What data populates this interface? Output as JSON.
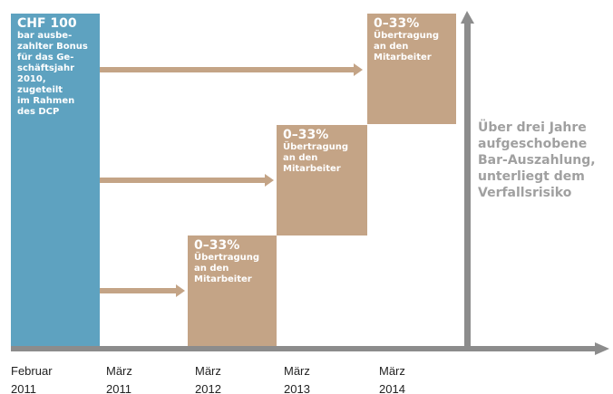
{
  "bonus": {
    "title": "CHF 100",
    "lines": [
      "bar ausbe-",
      "zahlter Bonus",
      "für das Ge-",
      "schäftsjahr",
      "2010, zugeteilt",
      "im Rahmen",
      "des DCP"
    ]
  },
  "tranches": [
    {
      "title": "0–33%",
      "lines": [
        "Übertragung",
        "an den",
        "Mitarbeiter"
      ]
    },
    {
      "title": "0–33%",
      "lines": [
        "Übertragung",
        "an den",
        "Mitarbeiter"
      ]
    },
    {
      "title": "0–33%",
      "lines": [
        "Übertragung",
        "an den",
        "Mitarbeiter"
      ]
    }
  ],
  "note": [
    "Über drei Jahre",
    "aufgeschobene",
    "Bar-Auszahlung,",
    "unterliegt dem",
    "Verfallsrisiko"
  ],
  "timeline": [
    [
      "Februar",
      "2011"
    ],
    [
      "März",
      "2011"
    ],
    [
      "März",
      "2012"
    ],
    [
      "März",
      "2013"
    ],
    [
      "März",
      "2014"
    ]
  ]
}
